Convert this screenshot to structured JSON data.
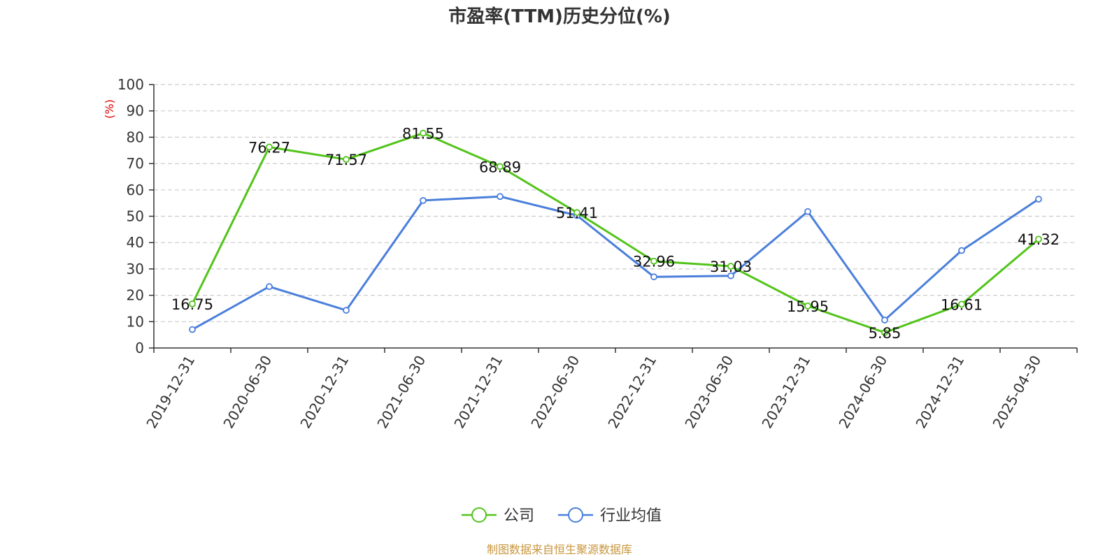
{
  "chart_data": {
    "type": "line",
    "title": "市盈率(TTM)历史分位(%)",
    "ylabel": "(%)",
    "ylim": [
      0,
      100
    ],
    "yticks": [
      0,
      10,
      20,
      30,
      40,
      50,
      60,
      70,
      80,
      90,
      100
    ],
    "grid": true,
    "legend_position": "bottom",
    "categories": [
      "2019-12-31",
      "2020-06-30",
      "2020-12-31",
      "2021-06-30",
      "2021-12-31",
      "2022-06-30",
      "2022-12-31",
      "2023-06-30",
      "2023-12-31",
      "2024-06-30",
      "2024-12-31",
      "2025-04-30"
    ],
    "series": [
      {
        "name": "公司",
        "color": "#52c41a",
        "values": [
          16.75,
          76.27,
          71.57,
          81.55,
          68.89,
          51.41,
          32.96,
          31.03,
          15.95,
          5.85,
          16.61,
          41.32
        ],
        "labels": [
          "16.75",
          "76.27",
          "71.57",
          "81.55",
          "68.89",
          "51.41",
          "32.96",
          "31.03",
          "15.95",
          "5.85",
          "16.61",
          "41.32"
        ]
      },
      {
        "name": "行业均值",
        "color": "#4a7fdb",
        "values": [
          7.0,
          23.3,
          14.3,
          56.0,
          57.5,
          50.3,
          27.0,
          27.4,
          51.8,
          10.6,
          37.0,
          56.5
        ]
      }
    ],
    "source": "制图数据来自恒生聚源数据库"
  }
}
